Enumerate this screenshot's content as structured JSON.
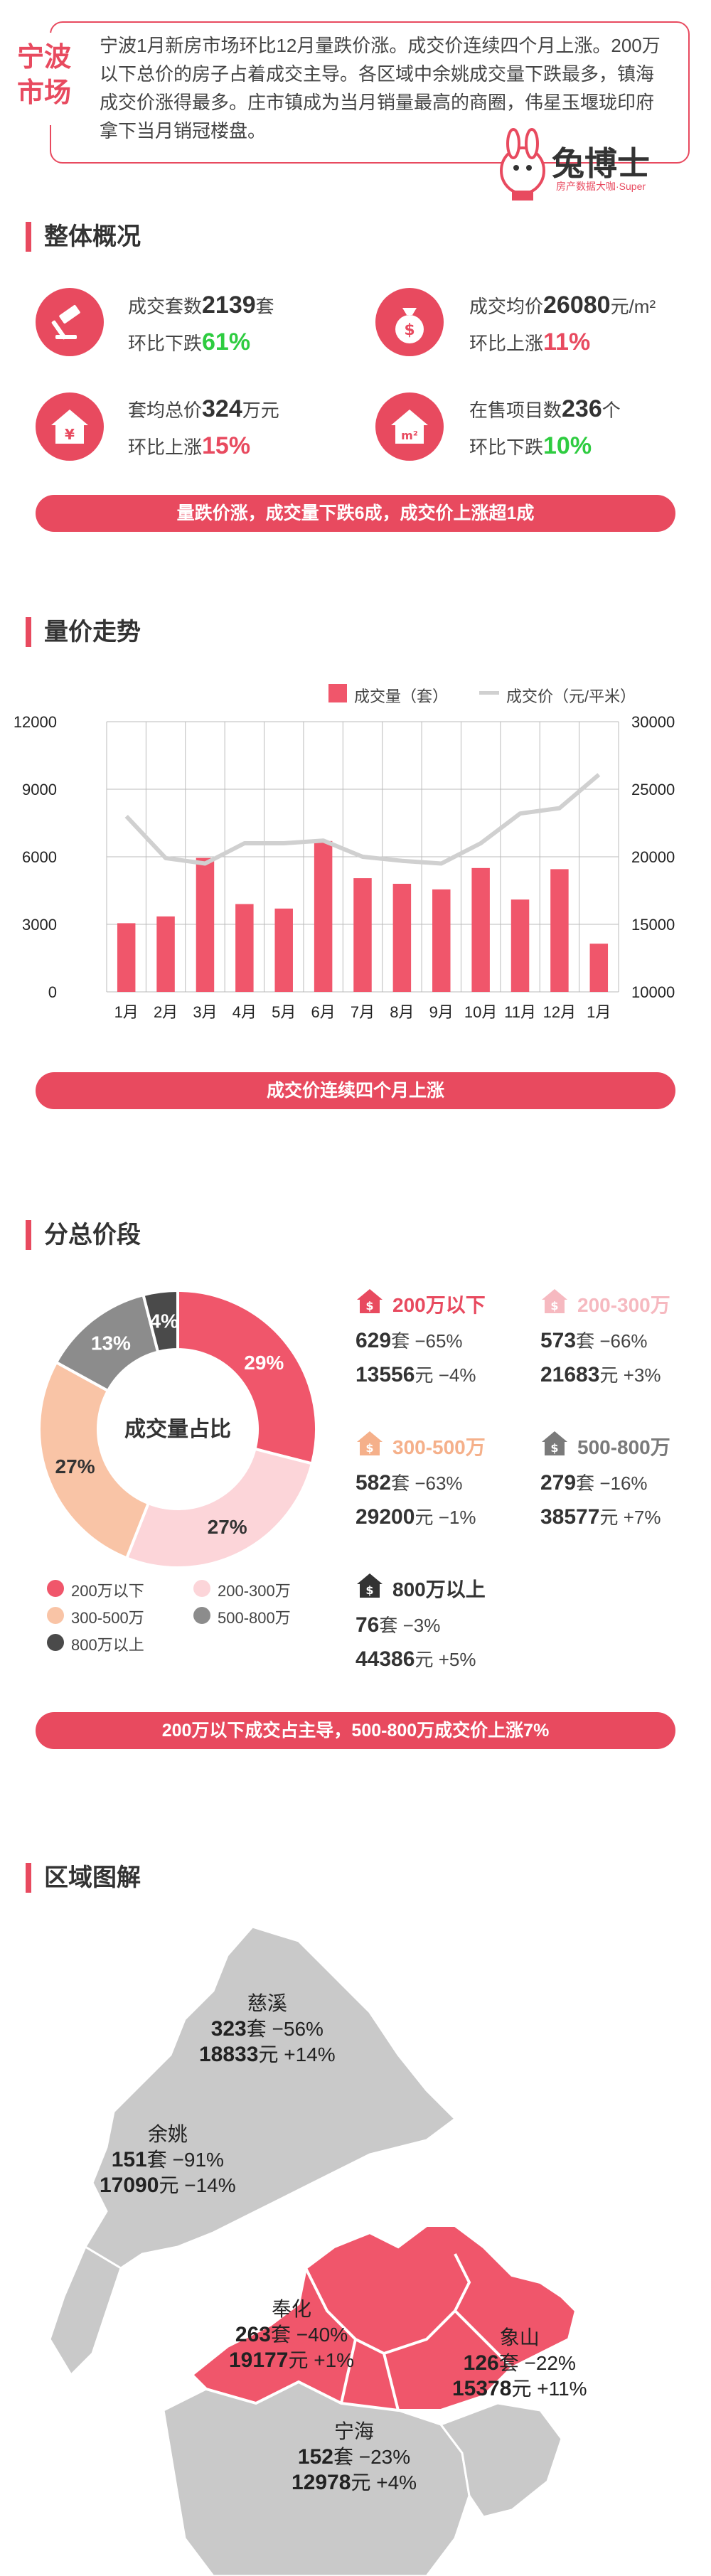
{
  "header": {
    "city": "宁波市场",
    "intro": "宁波1月新房市场环比12月量跌价涨。成交价连续四个月上涨。200万以下总价的房子占着成交主导。各区域中余姚成交量下跌最多，镇海成交价涨得最多。庄市镇成为当月销量最高的商圈，伟星玉堰珑印府拿下当月销冠楼盘。",
    "logo_text": "兔博士",
    "logo_sub": "房产数据大咖·Super"
  },
  "overview": {
    "title": "整体概况",
    "cards": [
      {
        "icon": "gavel-icon",
        "prefix": "成交套数",
        "value": "2139",
        "unit": "套",
        "change_prefix": "环比下跌",
        "change": "61%",
        "direction": "down"
      },
      {
        "icon": "money-bag-icon",
        "prefix": "成交均价",
        "value": "26080",
        "unit": "元/m²",
        "change_prefix": "环比上涨",
        "change": "11%",
        "direction": "up"
      },
      {
        "icon": "house-yuan-icon",
        "prefix": "套均总价",
        "value": "324",
        "unit": "万元",
        "change_prefix": "环比上涨",
        "change": "15%",
        "direction": "up"
      },
      {
        "icon": "house-m2-icon",
        "prefix": "在售项目数",
        "value": "236",
        "unit": "个",
        "change_prefix": "环比下跌",
        "change": "10%",
        "direction": "down"
      }
    ],
    "banner": "量跌价涨，成交量下跌6成，成交价上涨超1成"
  },
  "trend": {
    "title": "量价走势",
    "banner": "成交价连续四个月上涨"
  },
  "chart_data": [
    {
      "type": "bar",
      "categories": [
        "1月",
        "2月",
        "3月",
        "4月",
        "5月",
        "6月",
        "7月",
        "8月",
        "9月",
        "10月",
        "11月",
        "12月",
        "1月"
      ],
      "series": [
        {
          "name": "成交量（套）",
          "type": "bar",
          "axis": "left",
          "color": "#f0566b",
          "values": [
            3050,
            3350,
            5950,
            3900,
            3700,
            6700,
            5050,
            4800,
            4550,
            5500,
            4100,
            5450,
            2139
          ]
        },
        {
          "name": "成交价（元/平米）",
          "type": "line",
          "axis": "right",
          "color": "#d0d0d0",
          "values": [
            23000,
            19900,
            19500,
            21000,
            21000,
            21200,
            20000,
            19700,
            19500,
            21000,
            23200,
            23600,
            26080
          ]
        }
      ],
      "y_left": {
        "min": 0,
        "max": 12000,
        "ticks": [
          0,
          3000,
          6000,
          9000,
          12000
        ]
      },
      "y_right": {
        "min": 10000,
        "max": 30000,
        "ticks": [
          10000,
          15000,
          20000,
          25000,
          30000
        ]
      },
      "legend": "top-right",
      "grid": true
    },
    {
      "type": "pie",
      "title": "成交量占比",
      "categories": [
        "200万以下",
        "200-300万",
        "300-500万",
        "500-800万",
        "800万以上"
      ],
      "values": [
        29,
        27,
        27,
        13,
        4
      ],
      "colors": [
        "#f0566b",
        "#fcd5d9",
        "#f9c4a6",
        "#8c8c8c",
        "#4a4a4a"
      ],
      "labels": [
        "29%",
        "27%",
        "27%",
        "13%",
        "4%"
      ]
    }
  ],
  "tiers": {
    "title": "分总价段",
    "legend": [
      "200万以下",
      "200-300万",
      "300-500万",
      "500-800万",
      "800万以上"
    ],
    "items": [
      {
        "name": "200万以下",
        "color": "#e84a5f",
        "sets": "629",
        "set_change": "−65%",
        "price": "13556",
        "price_change": "−4%"
      },
      {
        "name": "200-300万",
        "color": "#f6b9c0",
        "sets": "573",
        "set_change": "−66%",
        "price": "21683",
        "price_change": "+3%"
      },
      {
        "name": "300-500万",
        "color": "#f5b08a",
        "sets": "582",
        "set_change": "−63%",
        "price": "29200",
        "price_change": "−1%"
      },
      {
        "name": "500-800万",
        "color": "#7a7a7a",
        "sets": "279",
        "set_change": "−16%",
        "price": "38577",
        "price_change": "+7%"
      },
      {
        "name": "800万以上",
        "color": "#333333",
        "sets": "76",
        "set_change": "−3%",
        "price": "44386",
        "price_change": "+5%"
      }
    ],
    "banner": "200万以下成交占主导，500-800万成交价上涨7%"
  },
  "regions": {
    "title": "区域图解",
    "items": [
      {
        "name": "慈溪",
        "sets": "323",
        "set_change": "−56%",
        "price": "18833",
        "price_change": "+14%"
      },
      {
        "name": "余姚",
        "sets": "151",
        "set_change": "−91%",
        "price": "17090",
        "price_change": "−14%"
      },
      {
        "name": "奉化",
        "sets": "263",
        "set_change": "−40%",
        "price": "19177",
        "price_change": "+1%"
      },
      {
        "name": "象山",
        "sets": "126",
        "set_change": "−22%",
        "price": "15378",
        "price_change": "+11%"
      },
      {
        "name": "宁海",
        "sets": "152",
        "set_change": "−23%",
        "price": "12978",
        "price_change": "+4%"
      }
    ],
    "unit_set": "套",
    "unit_price": "元"
  }
}
